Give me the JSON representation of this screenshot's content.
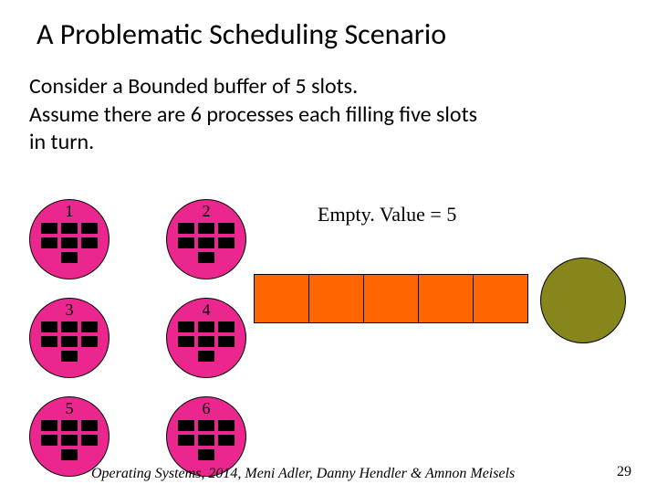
{
  "title": "A Problematic Scheduling Scenario",
  "description_lines": [
    "Consider a Bounded buffer of 5 slots.",
    "Assume there are 6 processes each filling five slots",
    " in turn."
  ],
  "processes": [
    {
      "num": "1"
    },
    {
      "num": "2"
    },
    {
      "num": "3"
    },
    {
      "num": "4"
    },
    {
      "num": "5"
    },
    {
      "num": "6"
    }
  ],
  "process_slot_pattern": [
    true,
    true,
    true,
    true,
    true,
    true,
    false,
    true,
    false
  ],
  "process_circle_color": "#ec268f",
  "process_slot_color": "#000000",
  "empty_label": "Empty. Value = 5",
  "buffer_cells": 5,
  "buffer_cell_color": "#ff6600",
  "big_circle_color": "#86861c",
  "footer": "Operating Systems, 2014, Meni Adler, Danny Hendler & Amnon Meisels",
  "page_number": "29"
}
